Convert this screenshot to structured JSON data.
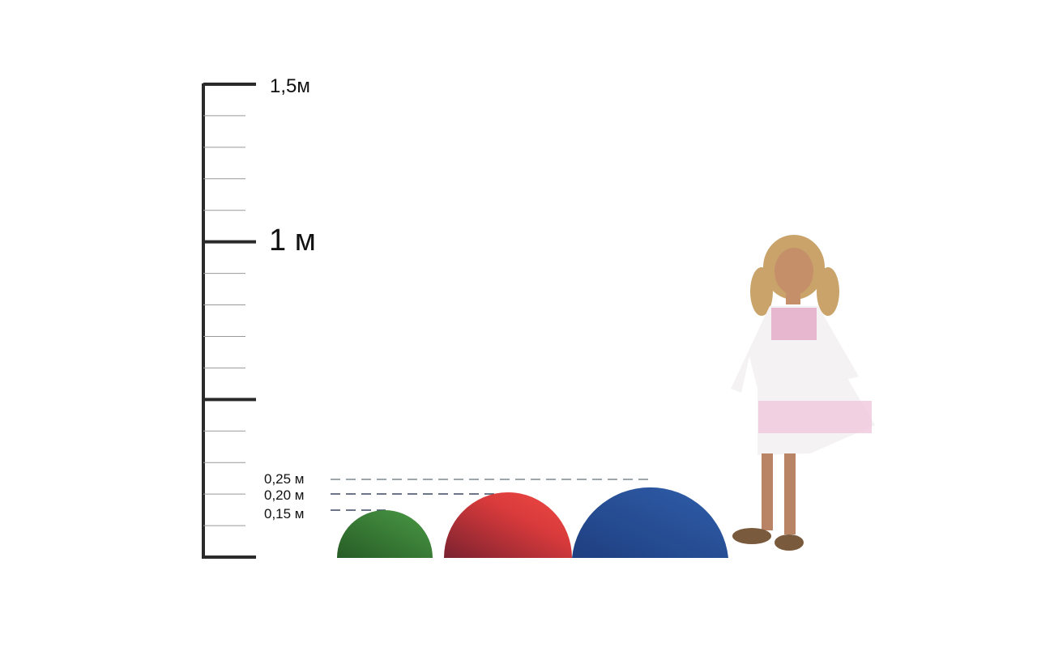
{
  "scale": {
    "labels": {
      "top": "1,5м",
      "mid": "1 м"
    },
    "heights": [
      {
        "label": "0,25 м",
        "value": 0.25
      },
      {
        "label": "0,20 м",
        "value": 0.2
      },
      {
        "label": "0,15 м",
        "value": 0.15
      }
    ]
  },
  "domes": [
    {
      "color": "#3f8a3a",
      "height_m": 0.15
    },
    {
      "color": "#d7393a",
      "height_m": 0.2
    },
    {
      "color": "#2a55a0",
      "height_m": 0.25
    }
  ]
}
